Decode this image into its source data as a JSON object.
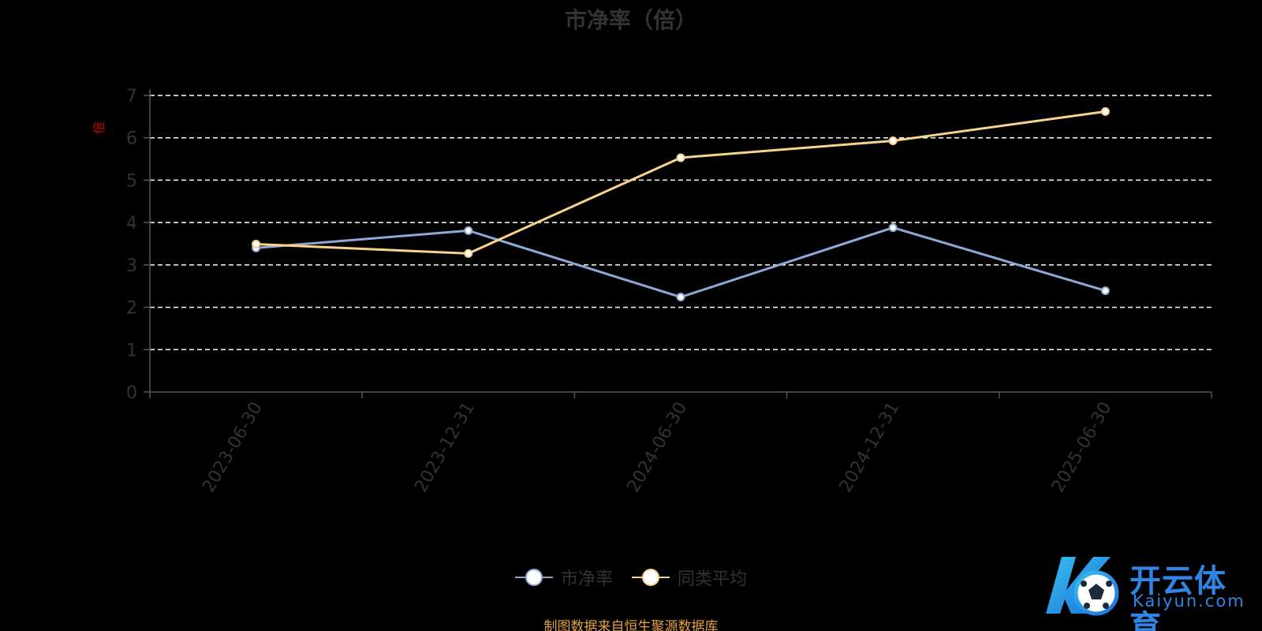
{
  "chart_data": {
    "type": "line",
    "title": "市净率（倍）",
    "ylabel": "倍",
    "xlabel": "",
    "categories": [
      "2023-06-30",
      "2023-12-31",
      "2024-06-30",
      "2024-12-31",
      "2025-06-30"
    ],
    "series": [
      {
        "name": "市净率",
        "values": [
          3.4,
          3.81,
          2.24,
          3.88,
          2.39
        ],
        "color": "#8fa9d6"
      },
      {
        "name": "同类平均",
        "values": [
          3.49,
          3.27,
          5.53,
          5.93,
          6.62
        ],
        "color": "#f7d38b"
      }
    ],
    "ylim": [
      0,
      7
    ],
    "yticks": [
      0,
      1,
      2,
      3,
      4,
      5,
      6,
      7
    ],
    "grid": true,
    "legend": "bottom-center"
  },
  "footer": {
    "source": "制图数据来自恒生聚源数据库"
  },
  "logo": {
    "name_cn": "开云体育",
    "name_en": "Kaiyun.com",
    "colors": [
      "#1e6fd9",
      "#35c0f0"
    ]
  },
  "colors": {
    "background": "#000000",
    "axis": "#555555",
    "grid": "#ffffff"
  }
}
